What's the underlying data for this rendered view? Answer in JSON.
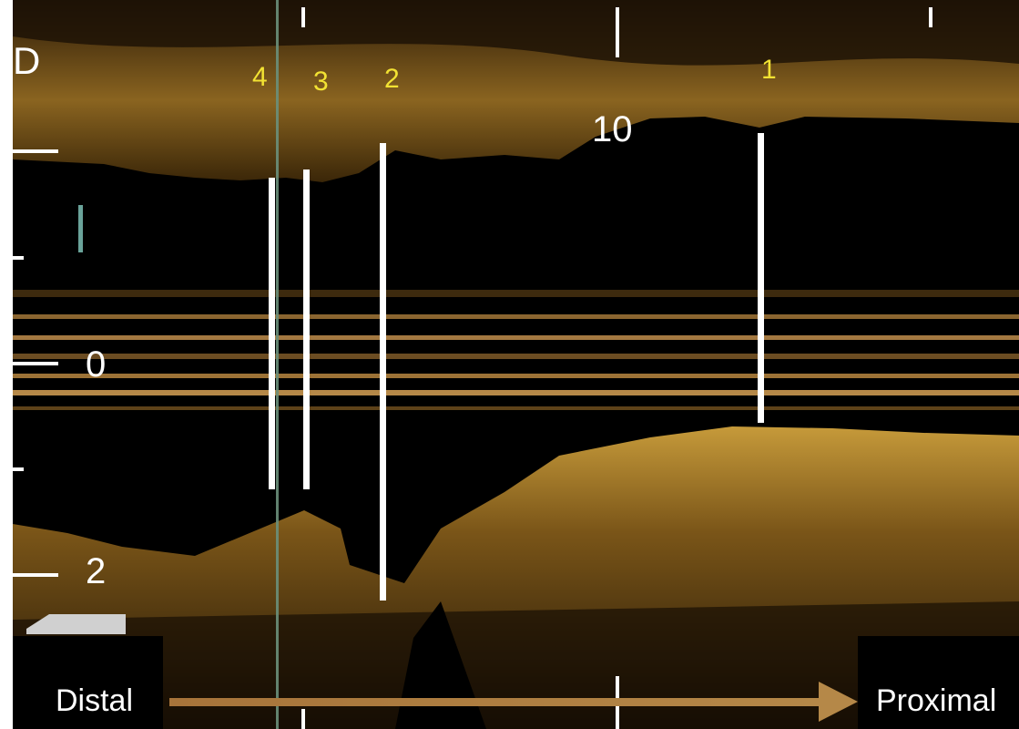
{
  "panel_letter": "D",
  "markers": [
    {
      "label": "4",
      "color": "#f2e233"
    },
    {
      "label": "3",
      "color": "#f2e233"
    },
    {
      "label": "2",
      "color": "#f2e233"
    },
    {
      "label": "1",
      "color": "#f2e233"
    }
  ],
  "annotation": "10",
  "scale_labels": {
    "zero": "0",
    "two": "2"
  },
  "direction": {
    "start": "Distal",
    "end": "Proximal",
    "arrow_color": "#b08040"
  },
  "colors": {
    "tissue": "#b8862a",
    "background": "#000000",
    "guide_line": "#6a8f7a"
  }
}
